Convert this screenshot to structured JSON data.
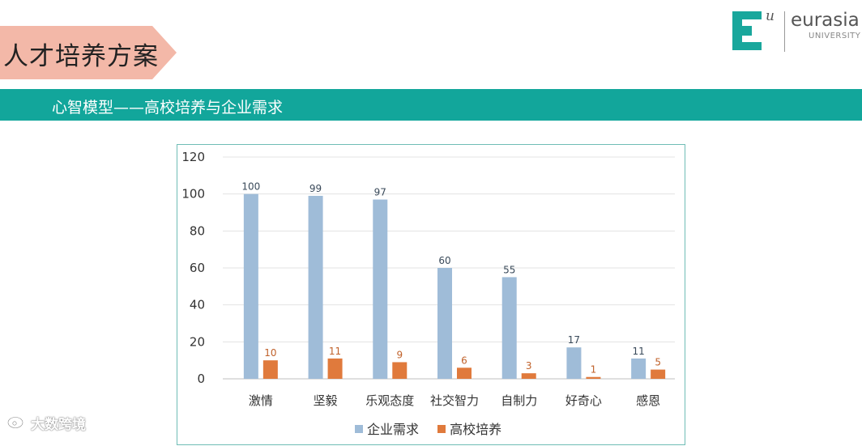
{
  "slide": {
    "title": "人才培养方案",
    "subtitle": "心智模型——高校培养与企业需求",
    "colors": {
      "teal_band": "#12a69b",
      "title_tab": "#f3b8a8",
      "logo_teal": "#19a79c"
    }
  },
  "logo": {
    "mark_letter": "E",
    "mark_sub": "u",
    "name": "eurasia",
    "sub": "UNIVERSITY"
  },
  "watermark": {
    "text": "大数跨境",
    "icon": "weibo-icon"
  },
  "chart_data": {
    "type": "bar",
    "categories": [
      "激情",
      "坚毅",
      "乐观态度",
      "社交智力",
      "自制力",
      "好奇心",
      "感恩"
    ],
    "series": [
      {
        "name": "企业需求",
        "values": [
          100,
          99,
          97,
          60,
          55,
          17,
          11
        ],
        "color": "#9fbcd8",
        "label_color": "#3a4a5a"
      },
      {
        "name": "高校培养",
        "values": [
          10,
          11,
          9,
          6,
          3,
          1,
          5
        ],
        "color": "#e07a3c",
        "label_color": "#c0612a"
      }
    ],
    "ylim": [
      0,
      120
    ],
    "yticks": [
      0,
      20,
      40,
      60,
      80,
      100,
      120
    ],
    "grid": true,
    "legend": "bottom",
    "xlabel": "",
    "ylabel": ""
  }
}
